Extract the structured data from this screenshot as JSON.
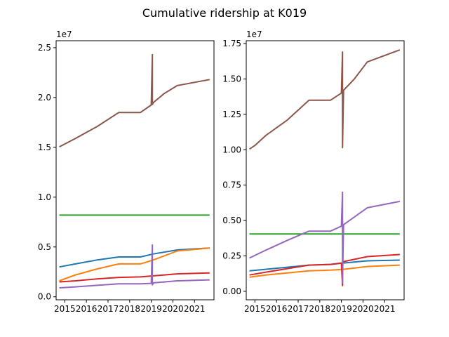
{
  "chart_data": {
    "type": "line",
    "title": "Cumulative ridership at K019",
    "series_colors": [
      "#1f77b4",
      "#ff7f0e",
      "#2ca02c",
      "#d62728",
      "#9467bd",
      "#8c564b"
    ],
    "panels": [
      {
        "offset_label": "1e7",
        "xlim": [
          2014.6,
          2021.9
        ],
        "ylim": [
          -0.03,
          2.57
        ],
        "xticks": [
          2015,
          2016,
          2017,
          2018,
          2019,
          2020,
          2021
        ],
        "xtick_labels": [
          "2015",
          "2016",
          "2017",
          "2018",
          "2019",
          "2020",
          "2021"
        ],
        "yticks": [
          0.0,
          0.5,
          1.0,
          1.5,
          2.0,
          2.5
        ],
        "ytick_labels": [
          "0.0",
          "0.5",
          "1.0",
          "1.5",
          "2.0",
          "2.5"
        ],
        "series": [
          {
            "color": "#1f77b4",
            "x": [
              2014.75,
              2015.5,
              2016.5,
              2017.5,
              2018.5,
              2019.1,
              2020.2,
              2021.7
            ],
            "y": [
              0.3,
              0.33,
              0.37,
              0.4,
              0.4,
              0.43,
              0.47,
              0.49
            ]
          },
          {
            "color": "#ff7f0e",
            "x": [
              2014.75,
              2015.5,
              2016.5,
              2017.5,
              2018.5,
              2019.1,
              2020.2,
              2021.7
            ],
            "y": [
              0.16,
              0.22,
              0.28,
              0.33,
              0.33,
              0.37,
              0.46,
              0.49
            ]
          },
          {
            "color": "#2ca02c",
            "x": [
              2014.75,
              2021.7
            ],
            "y": [
              0.82,
              0.82
            ]
          },
          {
            "color": "#d62728",
            "x": [
              2014.75,
              2015.5,
              2016.5,
              2017.5,
              2018.5,
              2019.1,
              2020.2,
              2021.7
            ],
            "y": [
              0.15,
              0.16,
              0.18,
              0.195,
              0.2,
              0.21,
              0.23,
              0.24
            ]
          },
          {
            "color": "#9467bd",
            "x": [
              2014.75,
              2015.5,
              2016.5,
              2017.5,
              2018.5,
              2019.0,
              2019.05,
              2019.05,
              2019.1,
              2020.2,
              2021.7
            ],
            "y": [
              0.09,
              0.1,
              0.115,
              0.13,
              0.13,
              0.135,
              0.52,
              0.12,
              0.14,
              0.16,
              0.17
            ]
          },
          {
            "color": "#8c564b",
            "x": [
              2014.75,
              2015.5,
              2016.5,
              2017.5,
              2018.5,
              2019.0,
              2019.05,
              2019.05,
              2019.1,
              2019.6,
              2020.2,
              2021.7
            ],
            "y": [
              1.505,
              1.59,
              1.71,
              1.85,
              1.85,
              1.925,
              2.43,
              1.93,
              1.95,
              2.04,
              2.12,
              2.18
            ]
          }
        ]
      },
      {
        "offset_label": "1e7",
        "xlim": [
          2014.6,
          2021.9
        ],
        "ylim": [
          -0.06,
          1.77
        ],
        "xticks": [
          2015,
          2016,
          2017,
          2018,
          2019,
          2020,
          2021
        ],
        "xtick_labels": [
          "2015",
          "2016",
          "2017",
          "2018",
          "2019",
          "2020",
          "2021"
        ],
        "yticks": [
          0.0,
          0.25,
          0.5,
          0.75,
          1.0,
          1.25,
          1.5,
          1.75
        ],
        "ytick_labels": [
          "0.00",
          "0.25",
          "0.50",
          "0.75",
          "1.00",
          "1.25",
          "1.50",
          "1.75"
        ],
        "series": [
          {
            "color": "#1f77b4",
            "x": [
              2014.75,
              2015.5,
              2016.5,
              2017.5,
              2018.5,
              2019.1,
              2020.2,
              2021.7
            ],
            "y": [
              0.145,
              0.155,
              0.17,
              0.185,
              0.19,
              0.2,
              0.215,
              0.22
            ]
          },
          {
            "color": "#ff7f0e",
            "x": [
              2014.75,
              2015.5,
              2016.5,
              2017.5,
              2018.5,
              2019.1,
              2020.2,
              2021.7
            ],
            "y": [
              0.1,
              0.115,
              0.13,
              0.145,
              0.15,
              0.155,
              0.175,
              0.185
            ]
          },
          {
            "color": "#2ca02c",
            "x": [
              2014.75,
              2021.7
            ],
            "y": [
              0.405,
              0.405
            ]
          },
          {
            "color": "#d62728",
            "x": [
              2014.75,
              2015.5,
              2016.5,
              2017.5,
              2018.5,
              2019.0,
              2019.05,
              2019.05,
              2019.1,
              2020.2,
              2021.7
            ],
            "y": [
              0.115,
              0.135,
              0.16,
              0.185,
              0.19,
              0.2,
              0.04,
              0.2,
              0.21,
              0.245,
              0.26
            ]
          },
          {
            "color": "#9467bd",
            "x": [
              2014.75,
              2015.5,
              2016.5,
              2017.5,
              2018.5,
              2019.0,
              2019.05,
              2019.05,
              2019.1,
              2020.2,
              2021.7
            ],
            "y": [
              0.235,
              0.29,
              0.36,
              0.425,
              0.425,
              0.46,
              0.7,
              0.06,
              0.47,
              0.59,
              0.635
            ]
          },
          {
            "color": "#8c564b",
            "x": [
              2014.75,
              2015.0,
              2015.5,
              2016.5,
              2017.5,
              2018.5,
              2019.0,
              2019.05,
              2019.05,
              2019.1,
              2019.6,
              2020.2,
              2021.7
            ],
            "y": [
              1.005,
              1.03,
              1.1,
              1.21,
              1.35,
              1.35,
              1.4,
              1.69,
              1.015,
              1.42,
              1.5,
              1.62,
              1.705
            ]
          }
        ]
      }
    ]
  }
}
